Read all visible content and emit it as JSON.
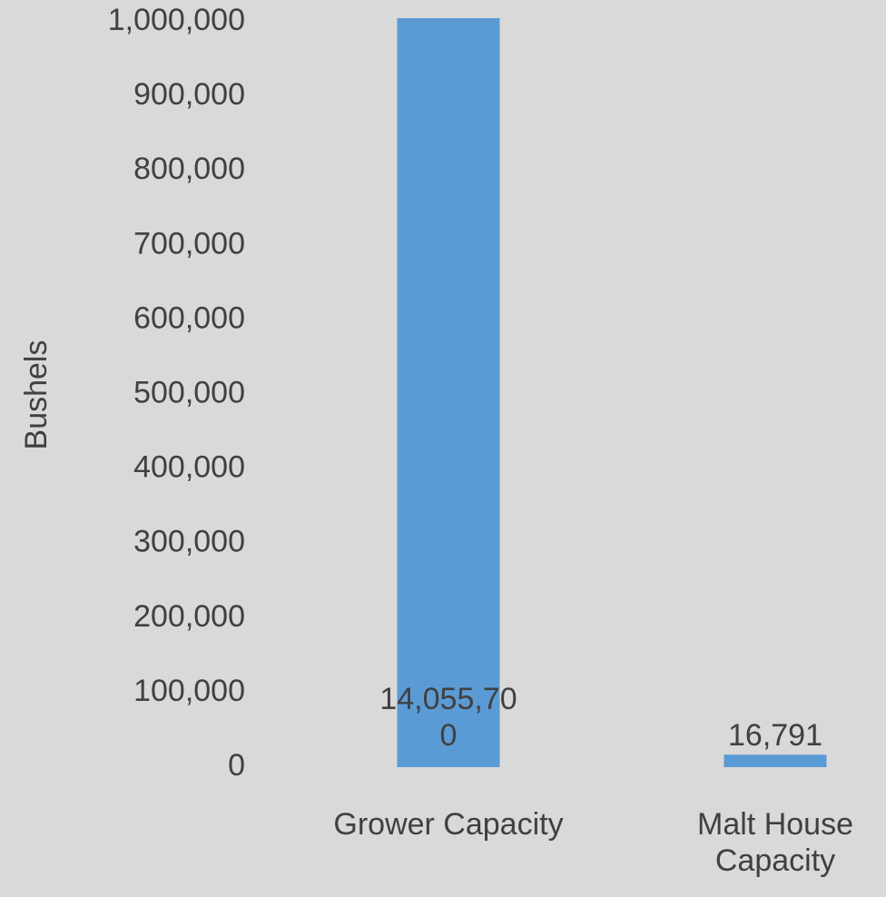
{
  "chart_data": {
    "type": "bar",
    "y_label": "Bushels",
    "categories": [
      "Grower Capacity",
      "Malt House Capacity"
    ],
    "values": [
      14055700,
      16791
    ],
    "value_labels": [
      "14,055,700",
      "16,791"
    ],
    "color": "#5b9bd5",
    "ylim": [
      0,
      1000000
    ],
    "yticks": [
      0,
      {
        "value": 100000,
        "label": "100,000"
      },
      {
        "value": 200000,
        "label": "200,000"
      },
      {
        "value": 300000,
        "label": "300,000"
      },
      {
        "value": 400000,
        "label": "400,000"
      },
      {
        "value": 500000,
        "label": "500,000"
      },
      {
        "value": 600000,
        "label": "600,000"
      },
      {
        "value": 700000,
        "label": "700,000"
      },
      {
        "value": 800000,
        "label": "800,000"
      },
      {
        "value": 900000,
        "label": "900,000"
      },
      {
        "value": 1000000,
        "label": "1,000,000"
      }
    ],
    "grid": false
  }
}
